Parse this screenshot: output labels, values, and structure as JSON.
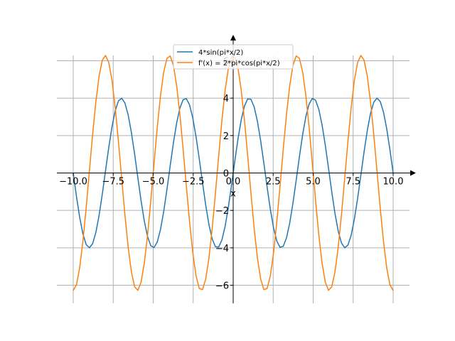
{
  "chart_data": {
    "type": "line",
    "xlabel": "x",
    "ylabel": "",
    "xlim": [
      -10.0,
      10.0
    ],
    "ylim": [
      -6.283,
      6.283
    ],
    "grid": true,
    "legend_position": "top-center",
    "x_ticks": [
      -10.0,
      -7.5,
      -5.0,
      -2.5,
      0.0,
      2.5,
      5.0,
      7.5,
      10.0
    ],
    "x_tick_labels": [
      "−10.0",
      "−7.5",
      "−5.0",
      "−2.5",
      "0.0",
      "2.5",
      "5.0",
      "7.5",
      "10.0"
    ],
    "y_ticks": [
      -6,
      -4,
      -2,
      0,
      2,
      4,
      6
    ],
    "y_tick_labels": [
      "−6",
      "−4",
      "−2",
      "0",
      "2",
      "4",
      "6"
    ],
    "sampling": {
      "start": -10,
      "end": 10,
      "count": 100
    },
    "series": [
      {
        "name": "4*sin(pi*x/2)",
        "expression": "4*sin(pi*x/2)",
        "color": "#1f77b4"
      },
      {
        "name": "f'(x) = 2*pi*cos(pi*x/2)",
        "expression": "2*pi*cos(pi*x/2)",
        "color": "#ff7f0e"
      }
    ]
  }
}
